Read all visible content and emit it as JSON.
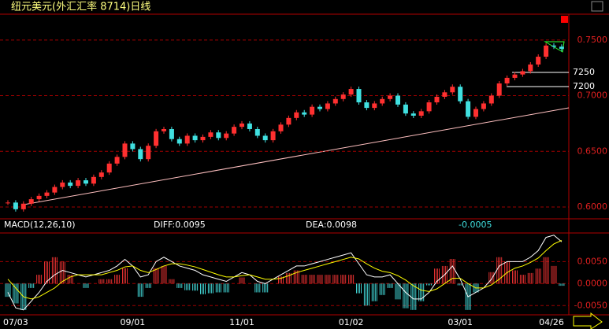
{
  "chart_data": [
    {
      "type": "candlestick",
      "title": "纽元美元(外汇汇率 8714)日线",
      "close": [
        0.604,
        0.598,
        0.603,
        0.607,
        0.61,
        0.613,
        0.618,
        0.622,
        0.619,
        0.624,
        0.621,
        0.627,
        0.631,
        0.639,
        0.645,
        0.657,
        0.652,
        0.643,
        0.655,
        0.668,
        0.67,
        0.661,
        0.657,
        0.664,
        0.66,
        0.663,
        0.667,
        0.662,
        0.666,
        0.672,
        0.675,
        0.67,
        0.664,
        0.66,
        0.668,
        0.674,
        0.68,
        0.685,
        0.683,
        0.69,
        0.688,
        0.693,
        0.697,
        0.701,
        0.706,
        0.694,
        0.689,
        0.693,
        0.697,
        0.7,
        0.692,
        0.684,
        0.682,
        0.686,
        0.694,
        0.699,
        0.703,
        0.708,
        0.695,
        0.681,
        0.688,
        0.693,
        0.7,
        0.711,
        0.716,
        0.719,
        0.722,
        0.728,
        0.735,
        0.745,
        0.744,
        0.742
      ],
      "up_color": "#ff3030",
      "down_color": "#40e0e0",
      "ylim": [
        0.5894,
        0.7732
      ],
      "yticks": [
        {
          "value": 0.6,
          "label": "0.6000"
        },
        {
          "value": 0.65,
          "label": "0.6500"
        },
        {
          "value": 0.7,
          "label": "0.7000"
        },
        {
          "value": 0.75,
          "label": "0.7500"
        }
      ],
      "grid": true,
      "annotations": [
        "7250",
        "7200"
      ]
    },
    {
      "type": "macd",
      "title": "MACD(12,26,10)",
      "diff_label": "DIFF:0.0095",
      "dea_label": "DEA:0.0098",
      "hist_label": "-0.0005",
      "categories": [
        null,
        "07/03",
        null,
        null,
        null,
        null,
        null,
        null,
        null,
        null,
        null,
        null,
        null,
        null,
        null,
        null,
        "09/01",
        null,
        null,
        null,
        null,
        null,
        null,
        null,
        null,
        null,
        null,
        null,
        null,
        null,
        "11/01",
        null,
        null,
        null,
        null,
        null,
        null,
        null,
        null,
        null,
        null,
        null,
        null,
        null,
        "01/02",
        null,
        null,
        null,
        null,
        null,
        null,
        null,
        null,
        null,
        null,
        null,
        null,
        null,
        "03/01",
        null,
        null,
        null,
        null,
        null,
        null,
        null,
        null,
        null,
        null,
        null,
        null,
        "04/26"
      ],
      "series": [
        {
          "name": "DIFF",
          "color": "#ffffff",
          "values": [
            -0.002,
            -0.0055,
            -0.006,
            -0.004,
            -0.002,
            0.0005,
            0.002,
            0.003,
            0.0025,
            0.002,
            0.0015,
            0.002,
            0.0025,
            0.003,
            0.004,
            0.0055,
            0.004,
            0.0015,
            0.002,
            0.005,
            0.006,
            0.005,
            0.004,
            0.0035,
            0.003,
            0.002,
            0.0015,
            0.001,
            0.0005,
            0.0015,
            0.0025,
            0.002,
            0.0005,
            0,
            0.001,
            0.002,
            0.003,
            0.004,
            0.004,
            0.0045,
            0.005,
            0.0055,
            0.006,
            0.0065,
            0.007,
            0.0045,
            0.002,
            0.0015,
            0.0015,
            0.002,
            0,
            -0.002,
            -0.0035,
            -0.0035,
            -0.002,
            0.0005,
            0.002,
            0.004,
            0.001,
            -0.003,
            -0.002,
            -0.001,
            0.001,
            0.004,
            0.005,
            0.005,
            0.005,
            0.006,
            0.0075,
            0.0105,
            0.011,
            0.0095
          ]
        },
        {
          "name": "DEA",
          "color": "#ffff00",
          "values": [
            0.001,
            -0.001,
            -0.003,
            -0.0035,
            -0.003,
            -0.002,
            -0.001,
            0.0005,
            0.0015,
            0.002,
            0.002,
            0.002,
            0.002,
            0.0025,
            0.003,
            0.0038,
            0.004,
            0.003,
            0.0025,
            0.0032,
            0.004,
            0.0045,
            0.0045,
            0.0042,
            0.0038,
            0.0032,
            0.0026,
            0.002,
            0.0015,
            0.0015,
            0.0018,
            0.002,
            0.0015,
            0.001,
            0.001,
            0.0012,
            0.0018,
            0.0025,
            0.003,
            0.0035,
            0.004,
            0.0045,
            0.005,
            0.0055,
            0.006,
            0.0056,
            0.0045,
            0.0035,
            0.0028,
            0.0025,
            0.0018,
            0.0008,
            -0.0005,
            -0.0015,
            -0.0018,
            -0.0012,
            0,
            0.0012,
            0.0012,
            0,
            -0.001,
            -0.001,
            -0.0003,
            0.001,
            0.0025,
            0.0035,
            0.004,
            0.0048,
            0.0058,
            0.0075,
            0.009,
            0.0098
          ]
        }
      ],
      "histogram": [
        -0.003,
        -0.0045,
        -0.006,
        -0.001,
        0.002,
        0.005,
        0.006,
        0.005,
        0.002,
        0,
        -0.001,
        0,
        0.001,
        0.001,
        0.002,
        0.0035,
        0,
        -0.003,
        -0.001,
        0.0035,
        0.004,
        0.001,
        -0.001,
        -0.0015,
        -0.0016,
        -0.0024,
        -0.0022,
        -0.002,
        -0.002,
        0,
        0.0014,
        0,
        -0.002,
        -0.002,
        0,
        0.0016,
        0.0024,
        0.003,
        0.002,
        0.002,
        0.002,
        0.002,
        0.002,
        0.002,
        0.002,
        -0.0022,
        -0.005,
        -0.004,
        -0.0026,
        -0.001,
        -0.0036,
        -0.0056,
        -0.006,
        -0.004,
        -0.0004,
        0.0034,
        0.004,
        0.0056,
        -0.0004,
        -0.006,
        -0.002,
        0,
        0.0026,
        0.006,
        0.005,
        0.003,
        0.002,
        0.0024,
        0.0034,
        0.006,
        0.004,
        -0.0005
      ],
      "up_color": "#e03030",
      "down_color": "#40d0d0",
      "ylim": [
        -0.0071,
        0.0115
      ],
      "yticks": [
        {
          "value": -0.005,
          "label": "-0.0050"
        },
        {
          "value": 0,
          "label": "0.0000"
        },
        {
          "value": 0.005,
          "label": "0.0050"
        }
      ],
      "grid": true
    }
  ]
}
